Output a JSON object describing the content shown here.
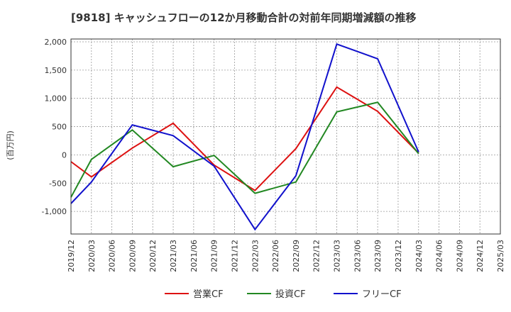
{
  "chart_data": {
    "type": "line",
    "title": "[9818]  キャッシュフローの12か月移動合計の対前年同期増減額の推移",
    "ylabel": "(百万円)",
    "xlabel": "",
    "ylim": [
      -1400,
      2050
    ],
    "yticks": [
      2000,
      1500,
      1000,
      500,
      0,
      -500,
      -1000
    ],
    "ytick_labels": [
      "2,000",
      "1,500",
      "1,000",
      "500",
      "0",
      "-500",
      "-1,000"
    ],
    "categories": [
      "2019/12",
      "2020/03",
      "2020/06",
      "2020/09",
      "2020/12",
      "2021/03",
      "2021/06",
      "2021/09",
      "2021/12",
      "2022/03",
      "2022/06",
      "2022/09",
      "2022/12",
      "2023/03",
      "2023/06",
      "2023/09",
      "2023/12",
      "2024/03",
      "2024/06",
      "2024/09",
      "2024/12",
      "2025/03"
    ],
    "grid": true,
    "legend_position": "bottom",
    "series": [
      {
        "name": "営業CF",
        "color": "#dd1111",
        "values": [
          -120,
          -390,
          null,
          120,
          null,
          560,
          null,
          -180,
          null,
          -630,
          null,
          110,
          null,
          1200,
          null,
          770,
          null,
          30,
          null,
          null,
          null,
          null
        ]
      },
      {
        "name": "投資CF",
        "color": "#228822",
        "values": [
          -750,
          -80,
          null,
          440,
          null,
          -210,
          null,
          -10,
          null,
          -680,
          null,
          -480,
          null,
          760,
          null,
          930,
          null,
          20,
          null,
          null,
          null,
          null
        ]
      },
      {
        "name": "フリーCF",
        "color": "#1111cc",
        "values": [
          -860,
          -480,
          null,
          530,
          null,
          340,
          null,
          -200,
          null,
          -1320,
          null,
          -370,
          null,
          1960,
          null,
          1700,
          null,
          50,
          null,
          null,
          null,
          null
        ]
      }
    ]
  }
}
